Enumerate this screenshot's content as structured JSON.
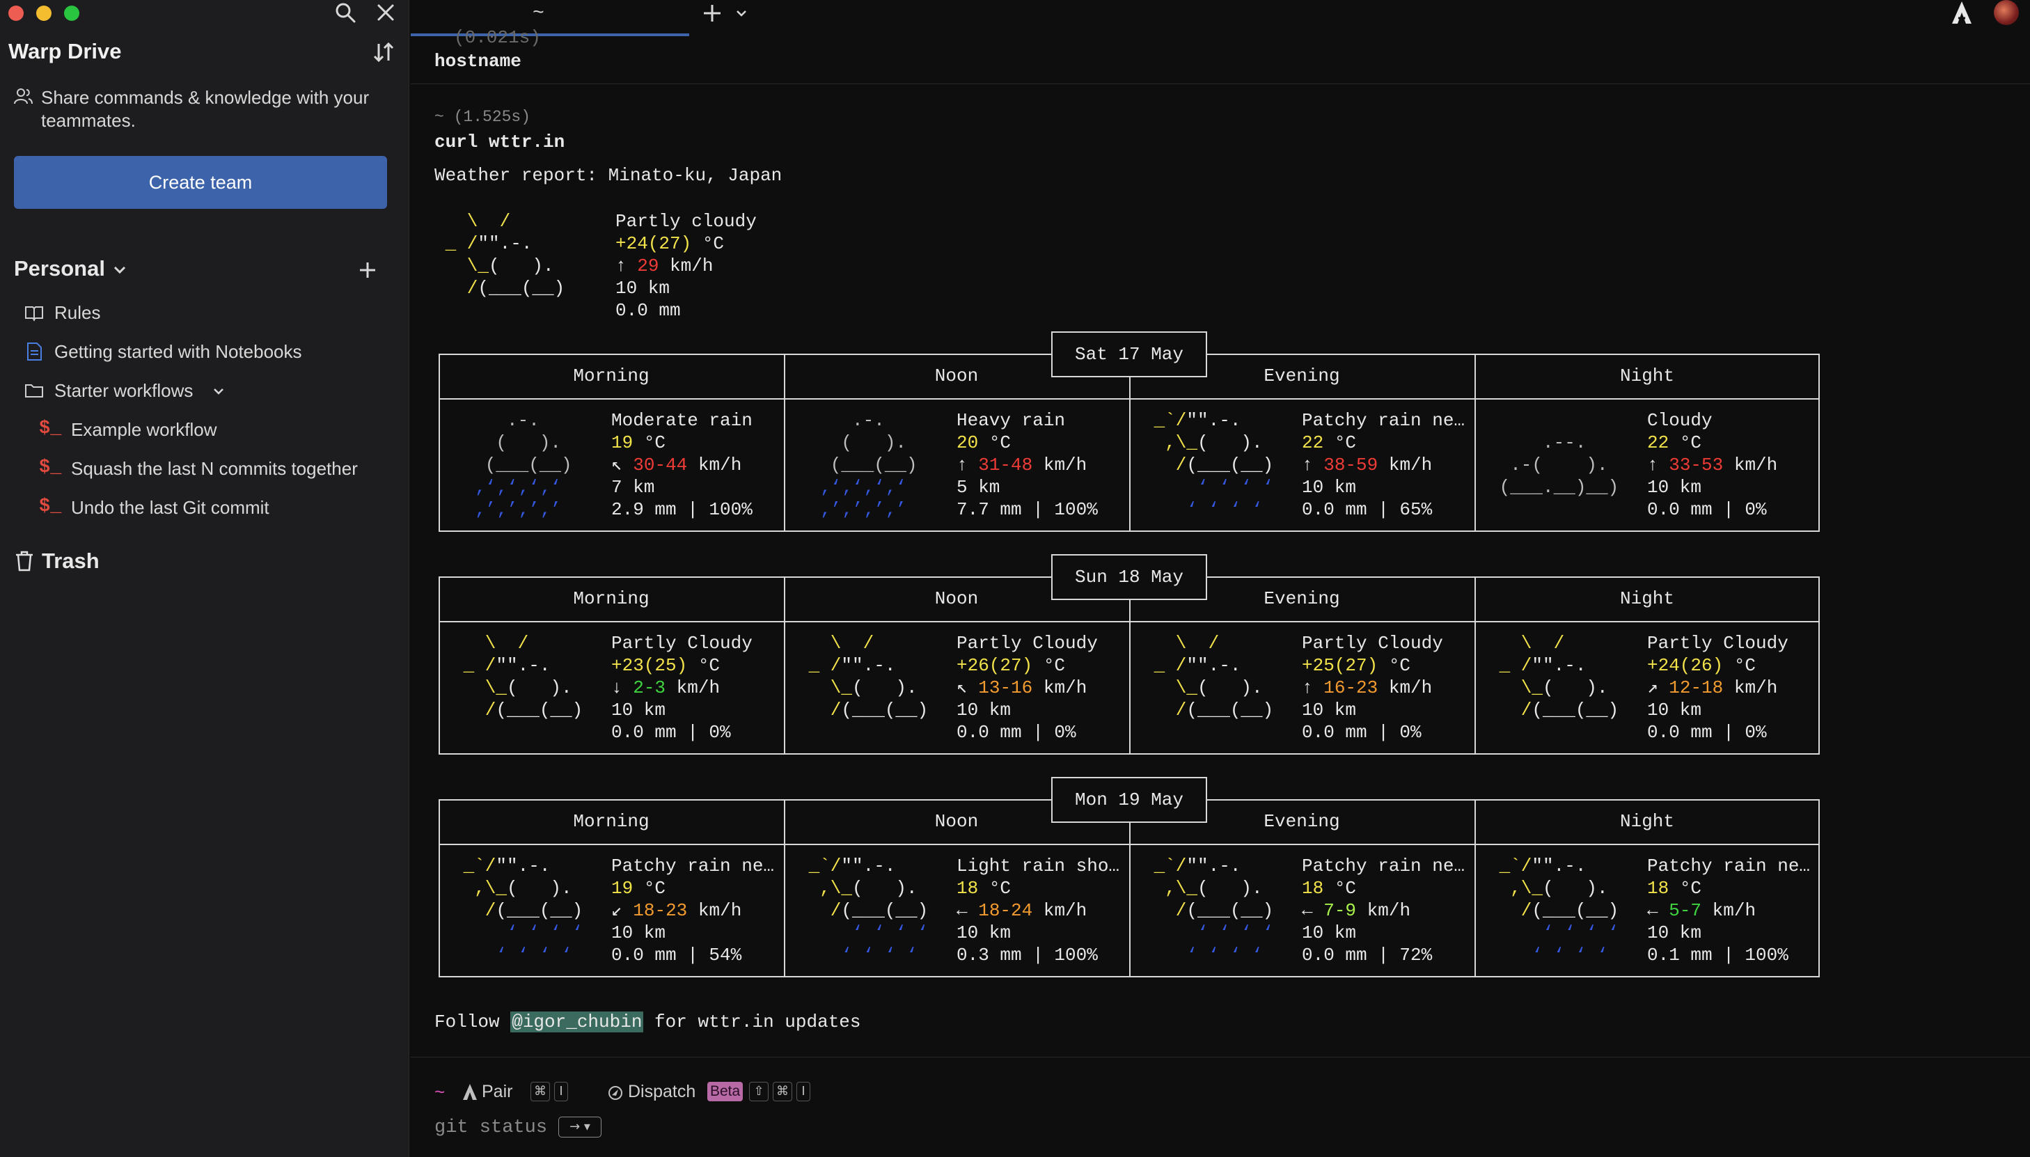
{
  "sidebar": {
    "title": "Warp Drive",
    "share_text": "Share commands & knowledge with your teammates.",
    "create_team_label": "Create team",
    "section_label": "Personal",
    "items": [
      {
        "label": "Rules",
        "icon": "book-icon"
      },
      {
        "label": "Getting started with Notebooks",
        "icon": "notebook-icon"
      },
      {
        "label": "Starter workflows",
        "icon": "folder-icon"
      },
      {
        "label": "Example workflow",
        "icon": "workflow-icon"
      },
      {
        "label": "Squash the last N commits together",
        "icon": "workflow-icon"
      },
      {
        "label": "Undo the last Git commit",
        "icon": "workflow-icon"
      }
    ],
    "workflow_glyph": "$_",
    "trash_label": "Trash"
  },
  "tabs": {
    "active_label": "~"
  },
  "terminal": {
    "prev_duration": "(0.021s)",
    "prev_command": "hostname",
    "duration": "~ (1.525s)",
    "command": "curl wttr.in",
    "report_title": "Weather report: Minato-ku, Japan",
    "current": {
      "condition": "Partly cloudy",
      "temp": "+24(27)",
      "temp_unit": "°C",
      "wind_arrow": "↑",
      "wind": "29",
      "wind_unit": "km/h",
      "visibility": "10 km",
      "precip": "0.0 mm"
    },
    "periods": [
      "Morning",
      "Noon",
      "Evening",
      "Night"
    ],
    "days": [
      {
        "date": "Sat 17 May",
        "cells": [
          {
            "condition": "Moderate rain",
            "temp": "19",
            "arrow": "↖",
            "wind": "30-44",
            "vis": "7 km",
            "precip": "2.9 mm | 100%"
          },
          {
            "condition": "Heavy rain",
            "temp": "20",
            "arrow": "↑",
            "wind": "31-48",
            "vis": "5 km",
            "precip": "7.7 mm | 100%"
          },
          {
            "condition": "Patchy rain ne…",
            "temp": "22",
            "arrow": "↑",
            "wind": "38-59",
            "vis": "10 km",
            "precip": "0.0 mm | 65%"
          },
          {
            "condition": "Cloudy",
            "temp": "22",
            "arrow": "↑",
            "wind": "33-53",
            "vis": "10 km",
            "precip": "0.0 mm | 0%"
          }
        ]
      },
      {
        "date": "Sun 18 May",
        "cells": [
          {
            "condition": "Partly Cloudy",
            "temp": "+23(25)",
            "arrow": "↓",
            "wind": "2-3",
            "vis": "10 km",
            "precip": "0.0 mm | 0%"
          },
          {
            "condition": "Partly Cloudy",
            "temp": "+26(27)",
            "arrow": "↖",
            "wind": "13-16",
            "vis": "10 km",
            "precip": "0.0 mm | 0%"
          },
          {
            "condition": "Partly Cloudy",
            "temp": "+25(27)",
            "arrow": "↑",
            "wind": "16-23",
            "vis": "10 km",
            "precip": "0.0 mm | 0%"
          },
          {
            "condition": "Partly Cloudy",
            "temp": "+24(26)",
            "arrow": "↗",
            "wind": "12-18",
            "vis": "10 km",
            "precip": "0.0 mm | 0%"
          }
        ]
      },
      {
        "date": "Mon 19 May",
        "cells": [
          {
            "condition": "Patchy rain ne…",
            "temp": "19",
            "arrow": "↙",
            "wind": "18-23",
            "vis": "10 km",
            "precip": "0.0 mm | 54%"
          },
          {
            "condition": "Light rain sho…",
            "temp": "18",
            "arrow": "←",
            "wind": "18-24",
            "vis": "10 km",
            "precip": "0.3 mm | 100%"
          },
          {
            "condition": "Patchy rain ne…",
            "temp": "18",
            "arrow": "←",
            "wind": "7-9",
            "vis": "10 km",
            "precip": "0.0 mm | 72%"
          },
          {
            "condition": "Patchy rain ne…",
            "temp": "18",
            "arrow": "←",
            "wind": "5-7",
            "vis": "10 km",
            "precip": "0.1 mm | 100%"
          }
        ]
      }
    ],
    "temp_unit": "°C",
    "wind_unit": "km/h",
    "follow_prefix": "Follow ",
    "follow_handle": "@igor_chubin",
    "follow_suffix": " for wttr.in updates"
  },
  "input": {
    "prompt": "~",
    "pair_label": "Pair",
    "pair_keys": [
      "⌘",
      "I"
    ],
    "dispatch_label": "Dispatch",
    "beta_label": "Beta",
    "dispatch_keys": [
      "⇧",
      "⌘",
      "I"
    ],
    "suggestion": "git status",
    "accept_key": "→ ▾"
  },
  "colors": {
    "accent": "#3d63aa",
    "temp_yellow": "#f2e24a",
    "wind_red": "#ef3b36",
    "wind_orange": "#f39b2f",
    "wind_green": "#3fd43f",
    "rain_blue": "#3558e0"
  }
}
